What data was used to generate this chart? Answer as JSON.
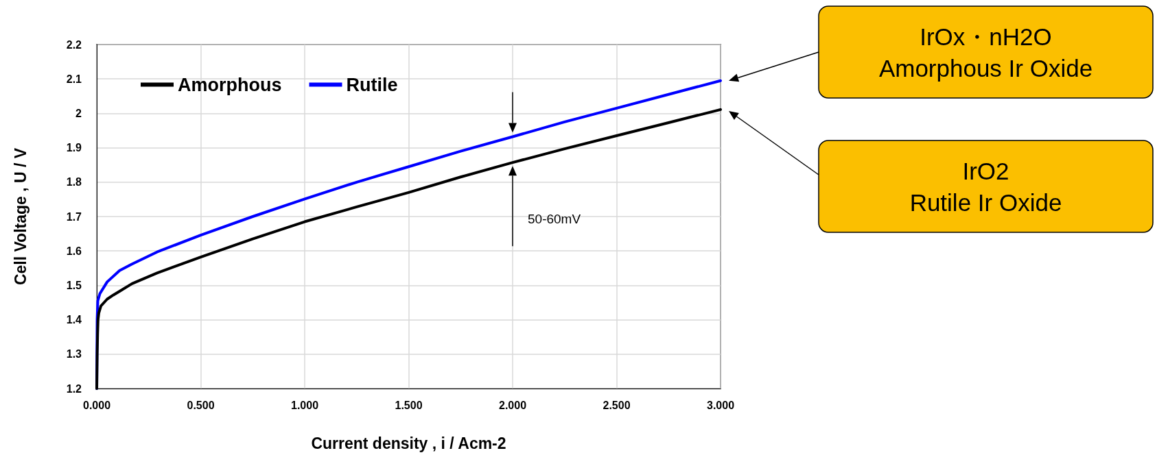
{
  "chart_data": {
    "type": "line",
    "xlabel": "Current density , i / Acm-2",
    "ylabel": "Cell Voltage , U / V",
    "xlim": [
      0,
      3
    ],
    "xticks": [
      {
        "value": 0,
        "label": "0.000"
      },
      {
        "value": 0.5,
        "label": "0.500"
      },
      {
        "value": 1,
        "label": "1.000"
      },
      {
        "value": 1.5,
        "label": "1.500"
      },
      {
        "value": 2,
        "label": "2.000"
      },
      {
        "value": 2.5,
        "label": "2.500"
      },
      {
        "value": 3,
        "label": "3.000"
      }
    ],
    "ylim": [
      1.2,
      2.2
    ],
    "yticks": [
      1.2,
      1.3,
      1.4,
      1.5,
      1.6,
      1.7,
      1.8,
      1.9,
      2,
      2.1,
      2.2
    ],
    "grid": true,
    "legend": "top left",
    "marker": "none",
    "line_style": "solid",
    "series": [
      {
        "name": "Amorphous",
        "color": "#000000",
        "x": [
          0,
          0.002,
          0.004,
          0.006,
          0.01,
          0.02,
          0.05,
          0.08,
          0.11,
          0.17,
          0.29,
          0.5,
          0.75,
          1.0,
          1.25,
          1.5,
          1.75,
          2.0,
          2.25,
          2.5,
          2.75,
          3.0
        ],
        "values": [
          1.2,
          1.3,
          1.36,
          1.4,
          1.42,
          1.44,
          1.46,
          1.472,
          1.483,
          1.505,
          1.536,
          1.582,
          1.635,
          1.685,
          1.728,
          1.77,
          1.815,
          1.857,
          1.897,
          1.935,
          1.973,
          2.011
        ]
      },
      {
        "name": "Rutile",
        "color": "#0000ff",
        "x": [
          0,
          0.002,
          0.005,
          0.015,
          0.05,
          0.11,
          0.17,
          0.29,
          0.5,
          0.75,
          1.0,
          1.25,
          1.5,
          1.75,
          2.0,
          2.25,
          2.5,
          2.75,
          3.0
        ],
        "values": [
          1.2,
          1.4,
          1.455,
          1.476,
          1.51,
          1.543,
          1.562,
          1.597,
          1.646,
          1.7,
          1.751,
          1.8,
          1.845,
          1.89,
          1.932,
          1.975,
          2.015,
          2.055,
          2.095
        ]
      }
    ],
    "annotations": [
      "50-60mV",
      "IrOx・nH2O\nAmorphous Ir Oxide",
      "IrO2\nRutile Ir Oxide"
    ]
  }
}
